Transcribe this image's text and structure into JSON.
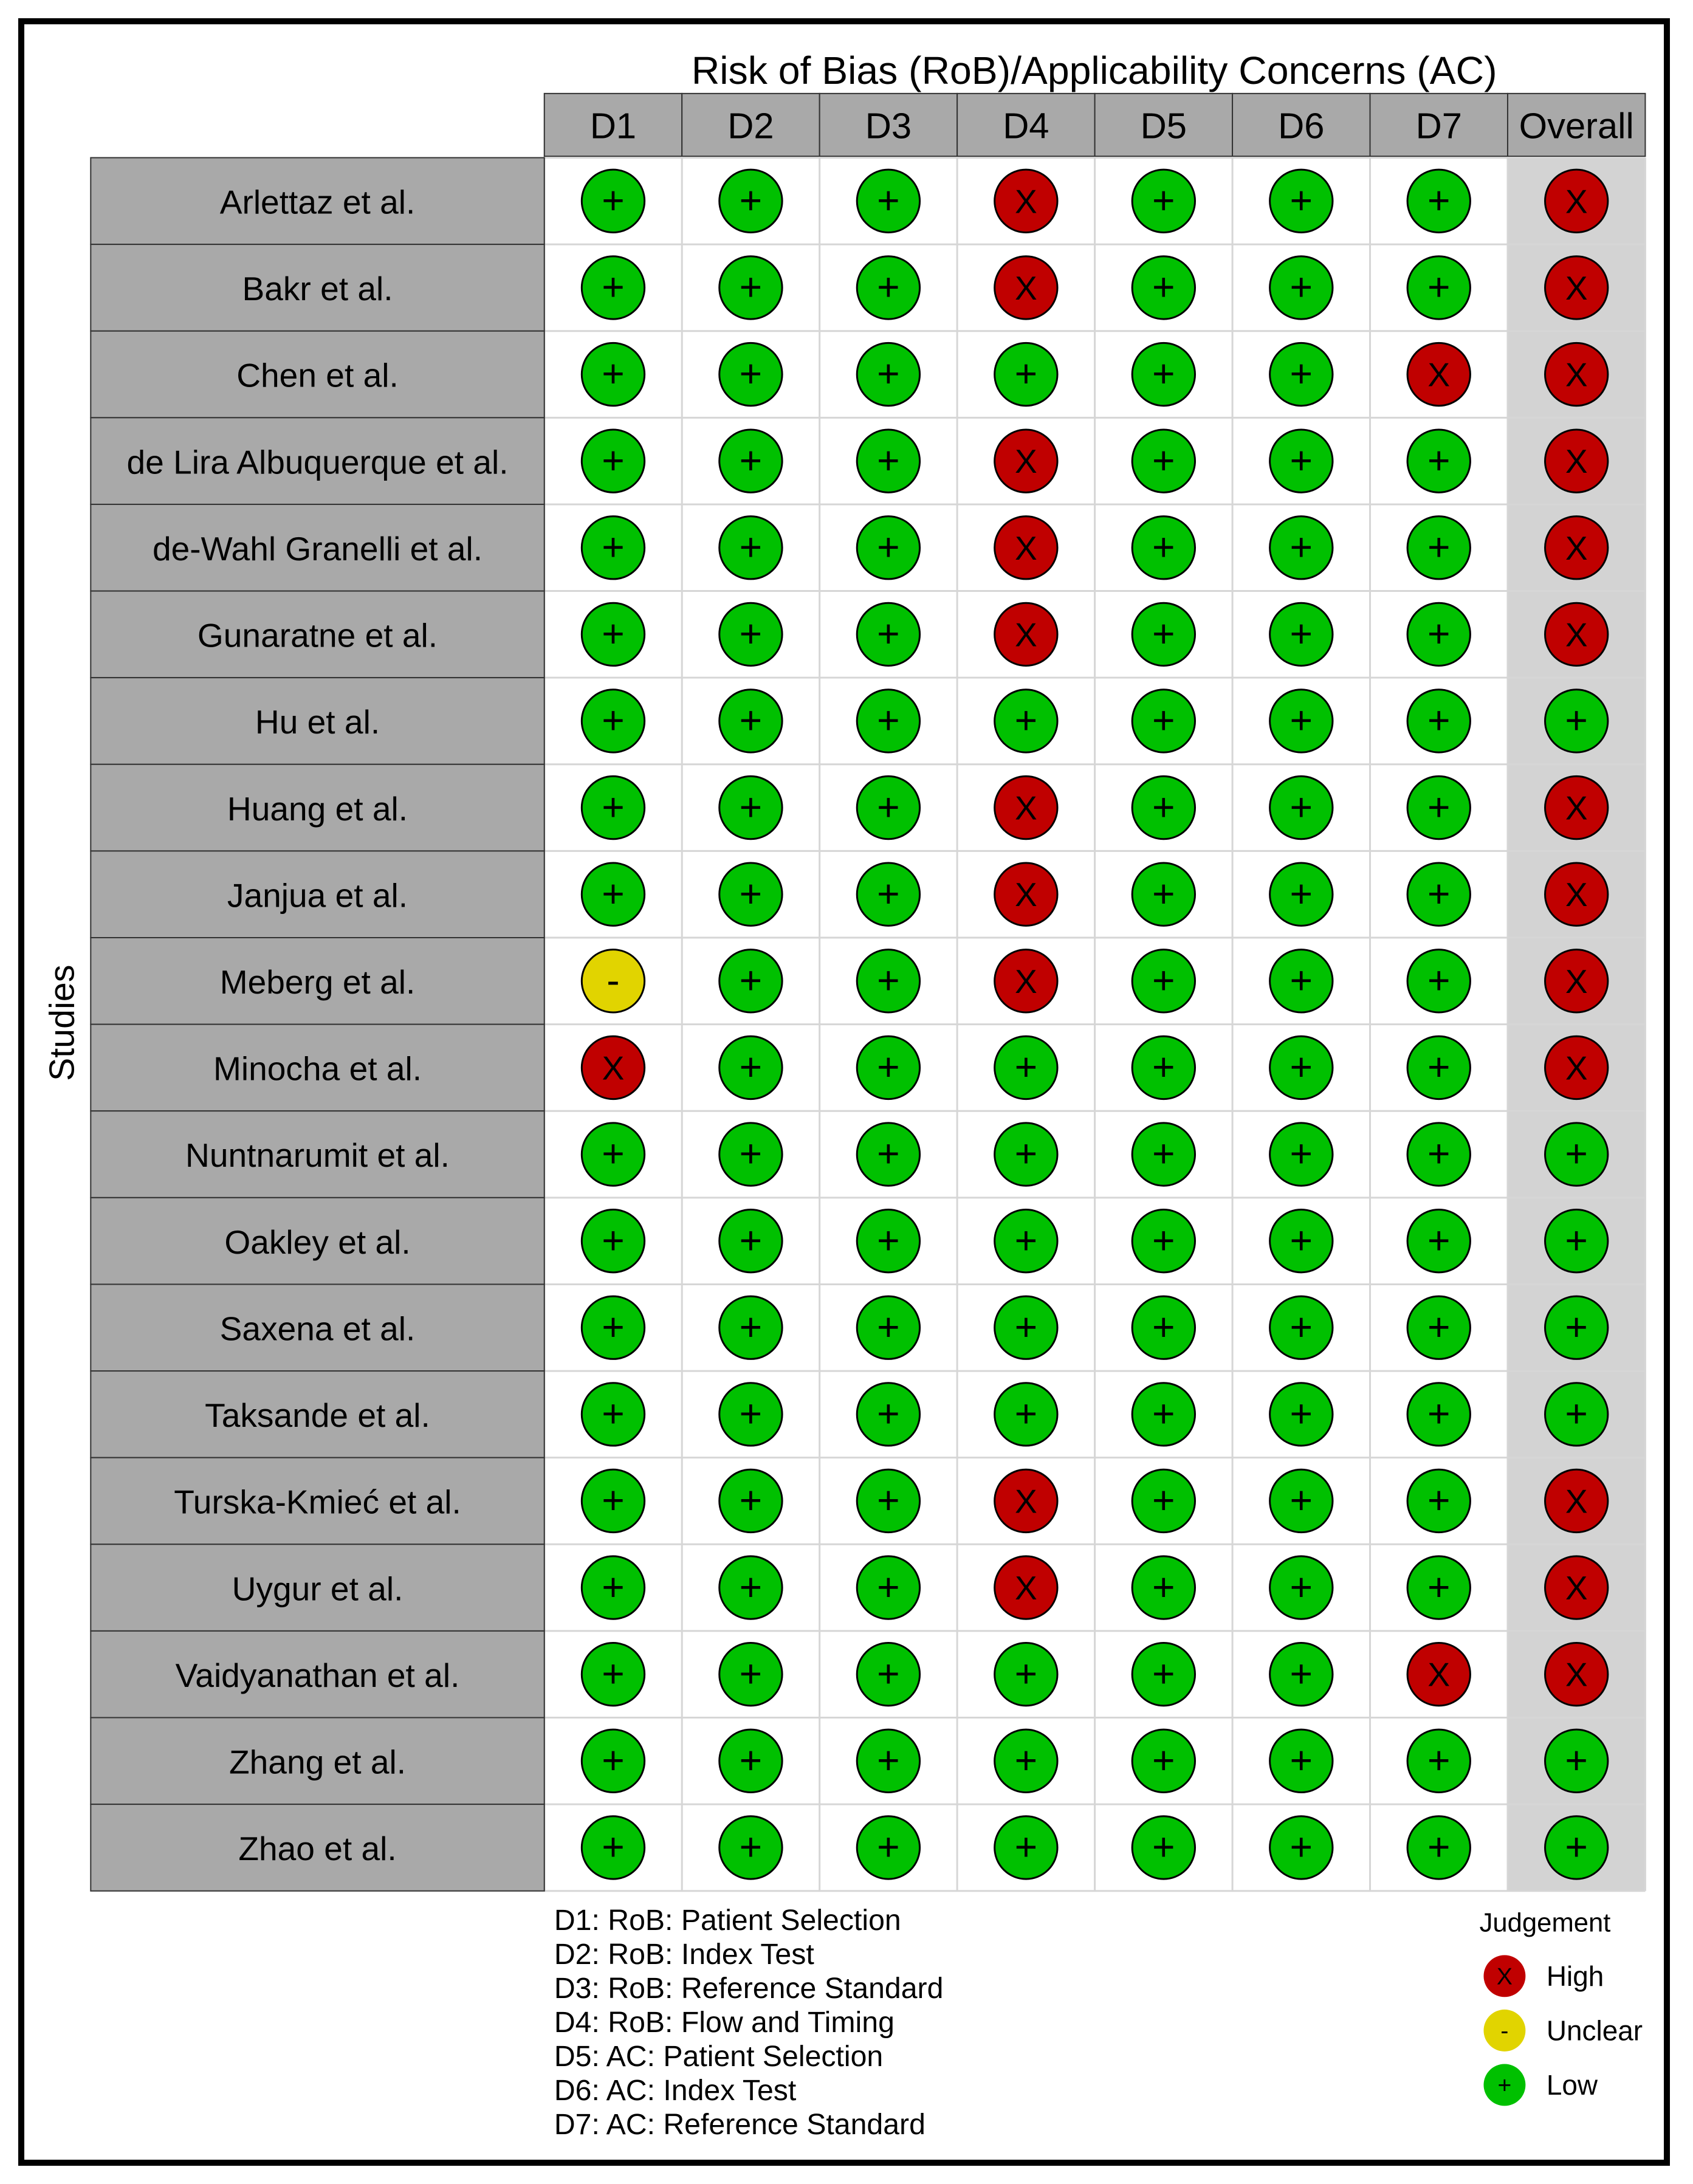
{
  "chart_data": {
    "type": "table",
    "title": "Risk of Bias (RoB)/Applicability Concerns (AC)",
    "ylabel": "Studies",
    "columns": [
      "D1",
      "D2",
      "D3",
      "D4",
      "D5",
      "D6",
      "D7",
      "Overall"
    ],
    "rows": [
      {
        "study": "Arlettaz et al.",
        "values": [
          "low",
          "low",
          "low",
          "high",
          "low",
          "low",
          "low",
          "high"
        ]
      },
      {
        "study": "Bakr et al.",
        "values": [
          "low",
          "low",
          "low",
          "high",
          "low",
          "low",
          "low",
          "high"
        ]
      },
      {
        "study": "Chen et al.",
        "values": [
          "low",
          "low",
          "low",
          "low",
          "low",
          "low",
          "high",
          "high"
        ]
      },
      {
        "study": "de Lira Albuquerque et al.",
        "values": [
          "low",
          "low",
          "low",
          "high",
          "low",
          "low",
          "low",
          "high"
        ]
      },
      {
        "study": "de-Wahl Granelli et al.",
        "values": [
          "low",
          "low",
          "low",
          "high",
          "low",
          "low",
          "low",
          "high"
        ]
      },
      {
        "study": "Gunaratne et al.",
        "values": [
          "low",
          "low",
          "low",
          "high",
          "low",
          "low",
          "low",
          "high"
        ]
      },
      {
        "study": "Hu et al.",
        "values": [
          "low",
          "low",
          "low",
          "low",
          "low",
          "low",
          "low",
          "low"
        ]
      },
      {
        "study": "Huang et al.",
        "values": [
          "low",
          "low",
          "low",
          "high",
          "low",
          "low",
          "low",
          "high"
        ]
      },
      {
        "study": "Janjua et al.",
        "values": [
          "low",
          "low",
          "low",
          "high",
          "low",
          "low",
          "low",
          "high"
        ]
      },
      {
        "study": "Meberg et al.",
        "values": [
          "unclear",
          "low",
          "low",
          "high",
          "low",
          "low",
          "low",
          "high"
        ]
      },
      {
        "study": "Minocha et al.",
        "values": [
          "high",
          "low",
          "low",
          "low",
          "low",
          "low",
          "low",
          "high"
        ]
      },
      {
        "study": "Nuntnarumit et al.",
        "values": [
          "low",
          "low",
          "low",
          "low",
          "low",
          "low",
          "low",
          "low"
        ]
      },
      {
        "study": "Oakley et al.",
        "values": [
          "low",
          "low",
          "low",
          "low",
          "low",
          "low",
          "low",
          "low"
        ]
      },
      {
        "study": "Saxena et al.",
        "values": [
          "low",
          "low",
          "low",
          "low",
          "low",
          "low",
          "low",
          "low"
        ]
      },
      {
        "study": "Taksande et al.",
        "values": [
          "low",
          "low",
          "low",
          "low",
          "low",
          "low",
          "low",
          "low"
        ]
      },
      {
        "study": "Turska-Kmieć et al.",
        "values": [
          "low",
          "low",
          "low",
          "high",
          "low",
          "low",
          "low",
          "high"
        ]
      },
      {
        "study": "Uygur et al.",
        "values": [
          "low",
          "low",
          "low",
          "high",
          "low",
          "low",
          "low",
          "high"
        ]
      },
      {
        "study": "Vaidyanathan et al.",
        "values": [
          "low",
          "low",
          "low",
          "low",
          "low",
          "low",
          "high",
          "high"
        ]
      },
      {
        "study": "Zhang et al.",
        "values": [
          "low",
          "low",
          "low",
          "low",
          "low",
          "low",
          "low",
          "low"
        ]
      },
      {
        "study": "Zhao et al.",
        "values": [
          "low",
          "low",
          "low",
          "low",
          "low",
          "low",
          "low",
          "low"
        ]
      }
    ],
    "domain_key": [
      "D1: RoB: Patient Selection",
      "D2: RoB: Index Test",
      "D3: RoB: Reference Standard",
      "D4: RoB: Flow and Timing",
      "D5: AC: Patient Selection",
      "D6: AC: Index Test",
      "D7: AC: Reference Standard"
    ],
    "legend": {
      "title": "Judgement",
      "position": "bottom-right",
      "items": [
        {
          "key": "high",
          "label": "High",
          "symbol": "X",
          "color": "#c00000"
        },
        {
          "key": "unclear",
          "label": "Unclear",
          "symbol": "-",
          "color": "#e1d400"
        },
        {
          "key": "low",
          "label": "Low",
          "symbol": "+",
          "color": "#00c000"
        }
      ]
    },
    "colors": {
      "header_fill": "#a9a9a9",
      "study_fill": "#a9a9a9",
      "overall_fill": "#d3d3d3",
      "cell_fill": "#ffffff"
    }
  }
}
